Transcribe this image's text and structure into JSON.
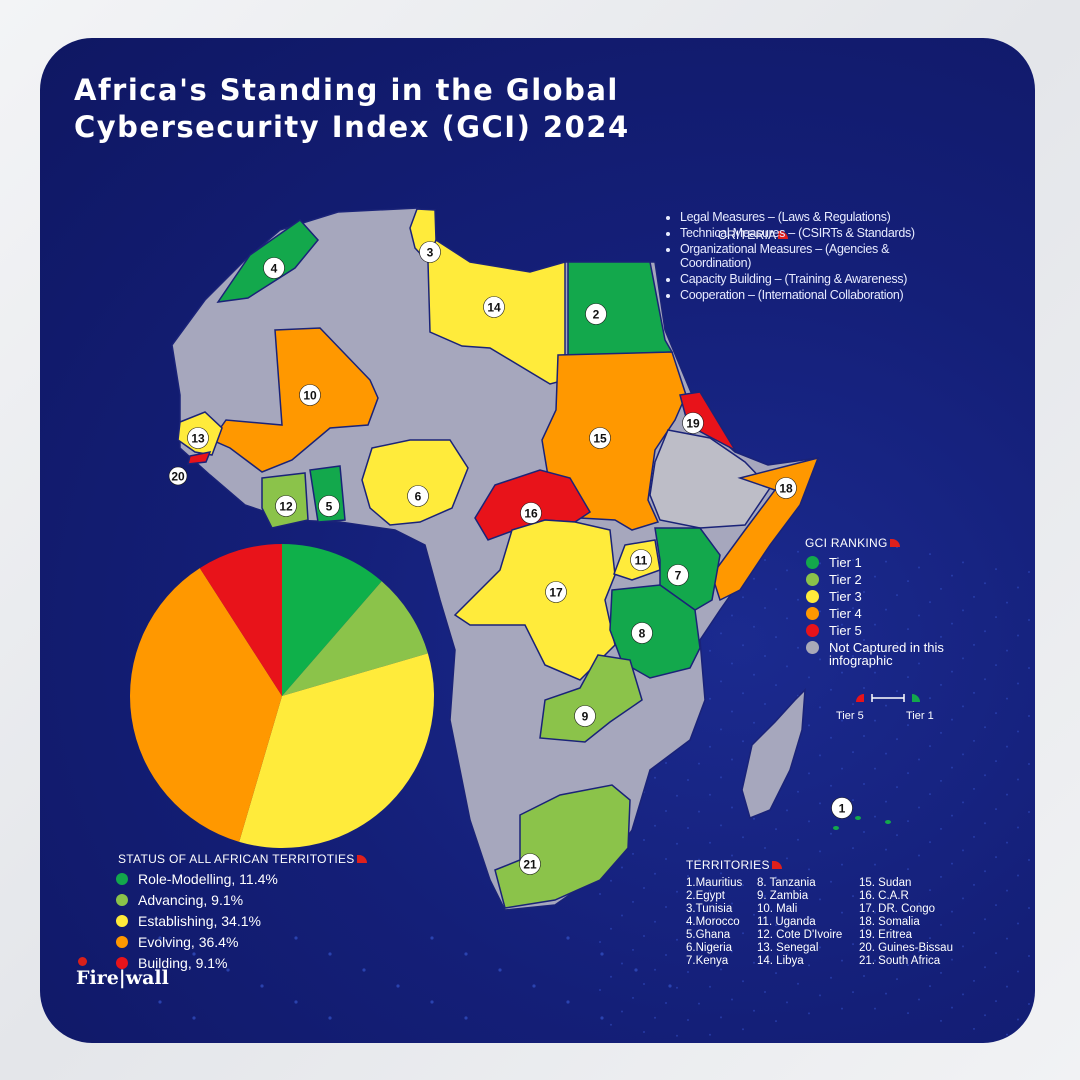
{
  "title_line1": "Africa's Standing in the Global",
  "title_line2": "Cybersecurity Index (GCI) 2024",
  "criteria": {
    "heading": "CRITERIA",
    "items": [
      "Legal Measures – (Laws & Regulations)",
      "Technical Measures – (CSIRTs & Standards)",
      "Organizational Measures – (Agencies & Coordination)",
      "Capacity Building – (Training & Awareness)",
      "Cooperation – (International Collaboration)"
    ]
  },
  "ranking": {
    "heading": "GCI RANKING",
    "items": [
      {
        "label": "Tier 1",
        "color": "#13a84c"
      },
      {
        "label": "Tier 2",
        "color": "#8bc34a"
      },
      {
        "label": "Tier 3",
        "color": "#ffeb3b"
      },
      {
        "label": "Tier 4",
        "color": "#ff9800"
      },
      {
        "label": "Tier 5",
        "color": "#e8131a"
      },
      {
        "label": "Not Captured in this infographic",
        "color": "#a9a9b8"
      }
    ],
    "scale_low": "Tier 5",
    "scale_high": "Tier 1"
  },
  "map_labels": [
    "1",
    "2",
    "3",
    "4",
    "5",
    "6",
    "7",
    "8",
    "9",
    "10",
    "11",
    "12",
    "13",
    "14",
    "15",
    "16",
    "17",
    "18",
    "19",
    "20",
    "21"
  ],
  "status": {
    "heading": "STATUS OF ALL AFRICAN TERRITOTIES",
    "items": [
      {
        "label": "Role-Modelling, 11.4%",
        "color": "#13a84c"
      },
      {
        "label": "Advancing, 9.1%",
        "color": "#8bc34a"
      },
      {
        "label": "Establishing, 34.1%",
        "color": "#ffeb3b"
      },
      {
        "label": "Evolving, 36.4%",
        "color": "#ff9800"
      },
      {
        "label": "Building, 9.1%",
        "color": "#e8131a"
      }
    ]
  },
  "chart_data": {
    "type": "pie",
    "categories": [
      "Role-Modelling",
      "Advancing",
      "Establishing",
      "Evolving",
      "Building"
    ],
    "values": [
      11.4,
      9.1,
      34.1,
      36.4,
      9.1
    ],
    "colors": [
      "#0fb04a",
      "#8bc34a",
      "#ffeb3b",
      "#ff9800",
      "#e8131a"
    ],
    "title": "STATUS OF ALL AFRICAN TERRITOTIES"
  },
  "territories": {
    "heading": "TERRITORIES",
    "col1": [
      "1.Mauritius",
      "2.Egypt",
      "3.Tunisia",
      "4.Morocco",
      "5.Ghana",
      "6.Nigeria",
      "7.Kenya"
    ],
    "col2": [
      "8. Tanzania",
      "9. Zambia",
      "10. Mali",
      "11. Uganda",
      "12. Cote D'Ivoire",
      "13. Senegal",
      "14. Libya"
    ],
    "col3": [
      "15. Sudan",
      "16. C.A.R",
      "17. DR. Congo",
      "18. Somalia",
      "19. Eritrea",
      "20. Guines-Bissau",
      "21. South Africa"
    ]
  },
  "logo": "Fire|wall"
}
